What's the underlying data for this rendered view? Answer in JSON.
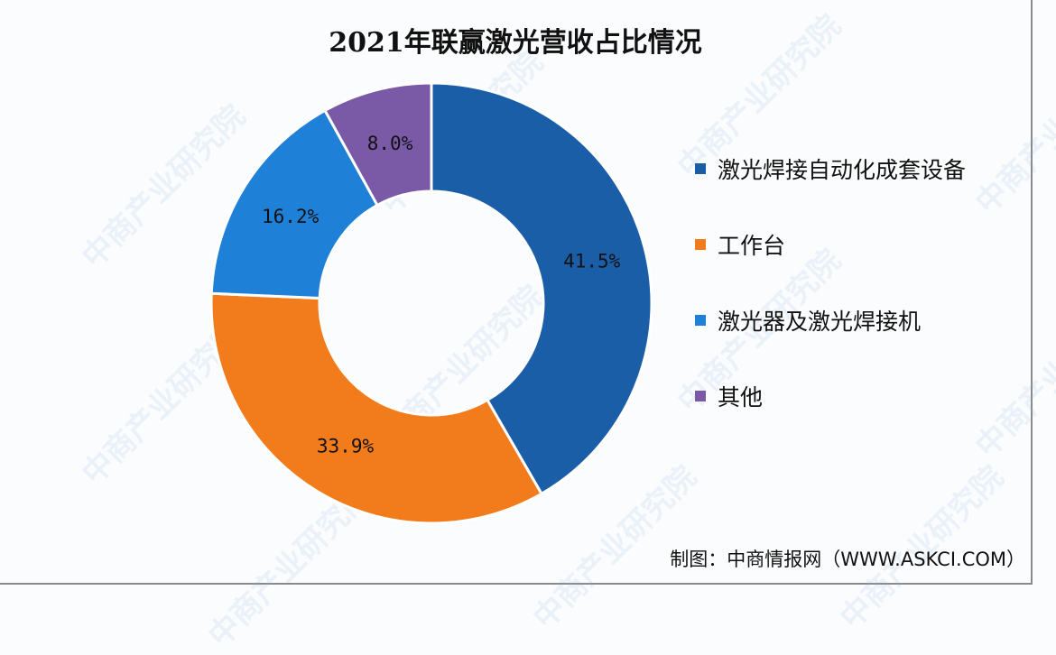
{
  "chart_data": {
    "type": "pie",
    "subtype": "donut",
    "title": "2021年联赢激光营收占比情况",
    "categories": [
      "激光焊接自动化成套设备",
      "工作台",
      "激光器及激光焊接机",
      "其他"
    ],
    "values": [
      41.5,
      33.9,
      16.2,
      8.0
    ],
    "labels": [
      "41.5%",
      "33.9%",
      "16.2%",
      "8.0%"
    ],
    "colors": [
      "#1a5ea8",
      "#f27c1c",
      "#1f80d8",
      "#7a5aa6"
    ],
    "legend_position": "right"
  },
  "source": "制图：中商情报网（WWW.ASKCI.COM）",
  "watermark": "中商产业研究院"
}
